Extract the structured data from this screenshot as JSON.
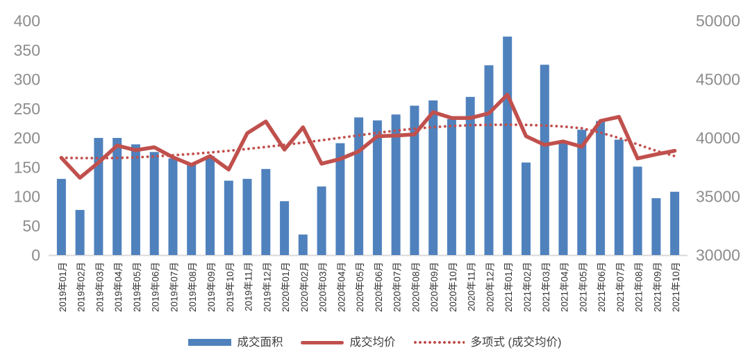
{
  "chart_data": {
    "type": "bar",
    "combo": "bar+line",
    "title": "",
    "xlabel": "",
    "ylabel_left": "",
    "ylabel_right": "",
    "grid": "off",
    "legend_position": "bottom",
    "categories": [
      "2019年01月",
      "2019年02月",
      "2019年03月",
      "2019年04月",
      "2019年05月",
      "2019年06月",
      "2019年07月",
      "2019年08月",
      "2019年09月",
      "2019年10月",
      "2019年11月",
      "2019年12月",
      "2020年01月",
      "2020年02月",
      "2020年03月",
      "2020年04月",
      "2020年05月",
      "2020年06月",
      "2020年07月",
      "2020年08月",
      "2020年09月",
      "2020年10月",
      "2020年11月",
      "2020年12月",
      "2021年01月",
      "2021年02月",
      "2021年03月",
      "2021年04月",
      "2021年05月",
      "2021年06月",
      "2021年07月",
      "2021年08月",
      "2021年09月",
      "2021年10月"
    ],
    "series": [
      {
        "name": "成交面积",
        "type": "bar",
        "axis": "left",
        "color": "#4F81BD",
        "values": [
          130,
          77,
          200,
          200,
          189,
          176,
          165,
          157,
          169,
          127,
          130,
          147,
          92,
          35,
          117,
          191,
          235,
          230,
          240,
          255,
          264,
          232,
          270,
          324,
          373,
          158,
          325,
          193,
          214,
          229,
          197,
          151,
          97,
          108
        ]
      },
      {
        "name": "成交均价",
        "type": "line",
        "axis": "right",
        "color": "#C0504D",
        "values": [
          38300,
          36600,
          37900,
          39350,
          38950,
          39200,
          38350,
          37700,
          38450,
          37300,
          40400,
          41400,
          39000,
          40900,
          37800,
          38200,
          38850,
          40150,
          40200,
          40300,
          42200,
          41700,
          41700,
          42100,
          43700,
          40150,
          39400,
          39700,
          39250,
          41450,
          41800,
          38250,
          38600,
          38900
        ]
      },
      {
        "name": "多项式 (成交均价)",
        "type": "trendline-dotted",
        "axis": "right",
        "color": "#C0504D",
        "values": [
          38300,
          38280,
          38270,
          38290,
          38340,
          38420,
          38520,
          38630,
          38760,
          38900,
          39060,
          39230,
          39410,
          39600,
          39800,
          40010,
          40220,
          40430,
          40620,
          40790,
          40920,
          41020,
          41080,
          41120,
          41130,
          41110,
          41060,
          40970,
          40820,
          40450,
          40000,
          39450,
          38900,
          38450
        ]
      }
    ],
    "left_axis": {
      "min": 0,
      "max": 400,
      "step": 50,
      "ticks": [
        400,
        350,
        300,
        250,
        200,
        150,
        100,
        50,
        0
      ]
    },
    "right_axis": {
      "min": 30000,
      "max": 50000,
      "step": 5000,
      "ticks": [
        50000,
        45000,
        40000,
        35000,
        30000
      ]
    }
  },
  "colors": {
    "bar": "#4F81BD",
    "price_line": "#C0504D",
    "trend_line": "#C0504D",
    "axis_tick_text": "#8C8C8C",
    "x_label_text": "#333333",
    "axis_line": "#D9D9D9",
    "legend_text": "#3F3F3F",
    "background": "#FFFFFF"
  }
}
